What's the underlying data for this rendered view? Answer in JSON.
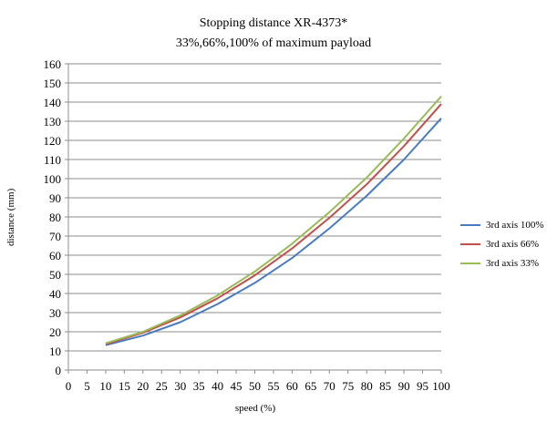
{
  "chart_data": {
    "type": "line",
    "title": "Stopping distance  XR-4373*",
    "subtitle": "33%,66%,100% of maximum payload",
    "xlabel": "speed (%)",
    "ylabel": "distance (mm)",
    "xlim": [
      0,
      100
    ],
    "ylim": [
      0,
      160
    ],
    "x_ticks": [
      0,
      5,
      10,
      15,
      20,
      25,
      30,
      35,
      40,
      45,
      50,
      55,
      60,
      65,
      70,
      75,
      80,
      85,
      90,
      95,
      100
    ],
    "y_ticks": [
      0,
      10,
      20,
      30,
      40,
      50,
      60,
      70,
      80,
      90,
      100,
      110,
      120,
      130,
      140,
      150,
      160
    ],
    "grid": "horizontal",
    "legend_position": "right",
    "x": [
      10,
      20,
      30,
      40,
      50,
      60,
      70,
      80,
      90,
      100
    ],
    "series": [
      {
        "name": "3rd axis 100%",
        "color": "#4a7bbf",
        "values": [
          13,
          18,
          25,
          34.5,
          45.5,
          58.5,
          74,
          91,
          110,
          131.5
        ]
      },
      {
        "name": "3rd axis 66%",
        "color": "#c0504d",
        "values": [
          13.5,
          19.5,
          27.5,
          37.5,
          49.5,
          63.5,
          79.5,
          97,
          117,
          139
        ]
      },
      {
        "name": "3rd axis 33%",
        "color": "#9bbb59",
        "values": [
          14,
          20,
          28.5,
          39,
          51.5,
          66,
          82.5,
          100.5,
          121,
          143
        ]
      }
    ]
  }
}
